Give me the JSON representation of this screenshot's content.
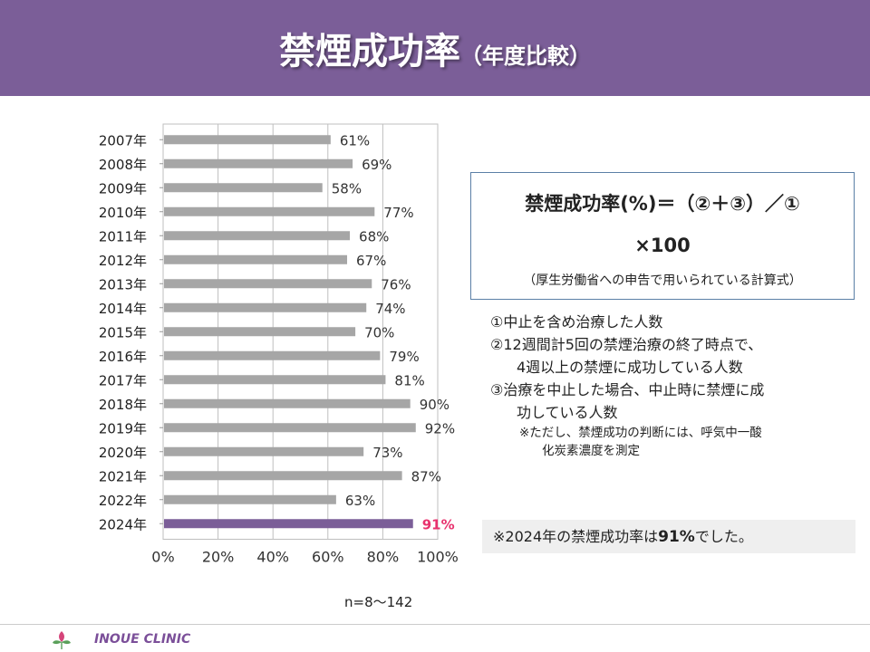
{
  "header": {
    "title_main": "禁煙成功率",
    "title_sub": "（年度比較）",
    "bg_color": "#7b5e98"
  },
  "chart_data": {
    "type": "bar",
    "orientation": "horizontal",
    "categories": [
      "2007年",
      "2008年",
      "2009年",
      "2010年",
      "2011年",
      "2012年",
      "2013年",
      "2014年",
      "2015年",
      "2016年",
      "2017年",
      "2018年",
      "2019年",
      "2020年",
      "2021年",
      "2022年",
      "2024年"
    ],
    "values": [
      61,
      69,
      58,
      77,
      68,
      67,
      76,
      74,
      70,
      79,
      81,
      90,
      92,
      73,
      87,
      63,
      91
    ],
    "data_labels": [
      "61%",
      "69%",
      "58%",
      "77%",
      "68%",
      "67%",
      "76%",
      "74%",
      "70%",
      "79%",
      "81%",
      "90%",
      "92%",
      "73%",
      "87%",
      "63%",
      "91%"
    ],
    "x_ticks": [
      "0%",
      "20%",
      "40%",
      "60%",
      "80%",
      "100%"
    ],
    "xlim": [
      0,
      100
    ],
    "bar_color": "#a6a6a6",
    "highlight_index": 16,
    "highlight_color": "#7b5e98",
    "highlight_label_color": "#e8326e",
    "grid": true
  },
  "formula": {
    "line1": "禁煙成功率(%)＝（②＋③）／①",
    "line2": "×100",
    "note": "（厚生労働省への申告で用いられている計算式）"
  },
  "definitions": {
    "d1": "①中止を含め治療した人数",
    "d2a": "②12週間計5回の禁煙治療の終了時点で、",
    "d2b": "4週以上の禁煙に成功している人数",
    "d3a": "③治療を中止した場合、中止時に禁煙に成",
    "d3b": "功している人数",
    "n1": "※ただし、禁煙成功の判断には、呼気中一酸",
    "n2": "化炭素濃度を測定"
  },
  "callout": {
    "prefix": "※2024年の禁煙成功率は",
    "value": "91%",
    "suffix": "でした。"
  },
  "sample_note": "n=8～142",
  "footer": {
    "clinic": "INOUE CLINIC"
  }
}
